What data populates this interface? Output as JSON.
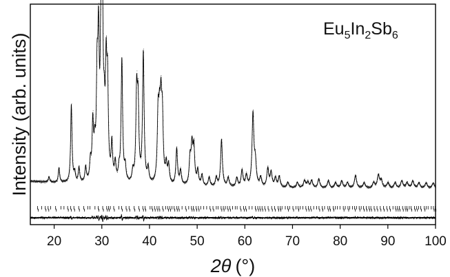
{
  "chart_data": {
    "type": "line",
    "title": "",
    "annotation": {
      "base": [
        "Eu",
        "In",
        "Sb"
      ],
      "subscripts": [
        "5",
        "2",
        "6"
      ]
    },
    "xlabel": {
      "symbol": "2θ",
      "unit": "(°)"
    },
    "ylabel": "Intensity (arb. units)",
    "xlim": [
      15,
      100
    ],
    "xticks": [
      20,
      30,
      40,
      50,
      60,
      70,
      80,
      90,
      100
    ],
    "y_ticks_labeled": false,
    "grid": false,
    "legend": "none",
    "series": [
      {
        "style": "dots",
        "color": "#000000"
      },
      {
        "style": "line",
        "color": "#000000"
      },
      {
        "style": "ticks",
        "color": "#000000"
      },
      {
        "style": "line",
        "color": "#000000"
      }
    ],
    "background": 0.06,
    "peaks": [
      [
        18.9,
        0.03
      ],
      [
        21.0,
        0.08
      ],
      [
        23.6,
        0.43
      ],
      [
        24.3,
        0.05
      ],
      [
        25.2,
        0.08
      ],
      [
        26.6,
        0.08
      ],
      [
        27.6,
        0.1
      ],
      [
        28.1,
        0.3
      ],
      [
        28.5,
        0.15
      ],
      [
        29.0,
        0.5
      ],
      [
        29.3,
        0.7
      ],
      [
        29.8,
        0.62
      ],
      [
        30.1,
        1.0
      ],
      [
        30.5,
        0.25
      ],
      [
        30.9,
        0.55
      ],
      [
        31.2,
        0.48
      ],
      [
        32.1,
        0.2
      ],
      [
        32.8,
        0.1
      ],
      [
        33.6,
        0.06
      ],
      [
        34.2,
        0.68
      ],
      [
        34.9,
        0.08
      ],
      [
        36.5,
        0.06
      ],
      [
        37.3,
        0.47
      ],
      [
        37.6,
        0.4
      ],
      [
        38.7,
        0.72
      ],
      [
        39.7,
        0.08
      ],
      [
        41.8,
        0.35
      ],
      [
        42.1,
        0.28
      ],
      [
        42.4,
        0.37
      ],
      [
        42.7,
        0.33
      ],
      [
        43.5,
        0.1
      ],
      [
        44.0,
        0.1
      ],
      [
        45.7,
        0.2
      ],
      [
        46.5,
        0.08
      ],
      [
        48.5,
        0.14
      ],
      [
        48.9,
        0.2
      ],
      [
        49.3,
        0.2
      ],
      [
        50.1,
        0.08
      ],
      [
        51.0,
        0.06
      ],
      [
        52.5,
        0.05
      ],
      [
        54.0,
        0.05
      ],
      [
        55.1,
        0.26
      ],
      [
        56.5,
        0.05
      ],
      [
        58.3,
        0.05
      ],
      [
        59.4,
        0.09
      ],
      [
        60.3,
        0.06
      ],
      [
        61.7,
        0.4
      ],
      [
        62.2,
        0.12
      ],
      [
        63.3,
        0.05
      ],
      [
        64.8,
        0.1
      ],
      [
        65.5,
        0.08
      ],
      [
        66.4,
        0.05
      ],
      [
        67.2,
        0.06
      ],
      [
        69.0,
        0.03
      ],
      [
        71.0,
        0.03
      ],
      [
        72.5,
        0.04
      ],
      [
        73.2,
        0.03
      ],
      [
        74.0,
        0.04
      ],
      [
        75.5,
        0.05
      ],
      [
        77.5,
        0.04
      ],
      [
        79.0,
        0.03
      ],
      [
        80.3,
        0.04
      ],
      [
        81.5,
        0.03
      ],
      [
        83.2,
        0.07
      ],
      [
        85.0,
        0.03
      ],
      [
        87.0,
        0.03
      ],
      [
        88.0,
        0.07
      ],
      [
        88.6,
        0.04
      ],
      [
        90.0,
        0.03
      ],
      [
        91.5,
        0.03
      ],
      [
        92.9,
        0.04
      ],
      [
        94.0,
        0.03
      ],
      [
        95.2,
        0.04
      ],
      [
        96.5,
        0.03
      ],
      [
        98.0,
        0.03
      ],
      [
        99.5,
        0.03
      ]
    ]
  }
}
